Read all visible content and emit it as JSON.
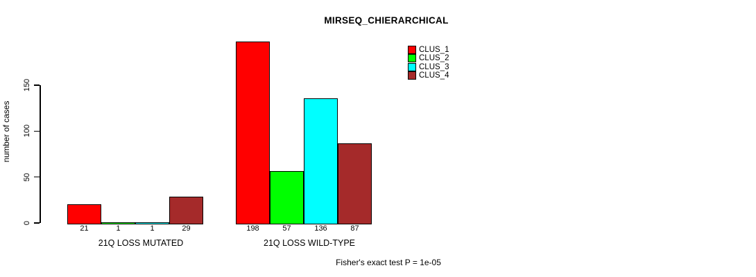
{
  "chart_data": {
    "type": "bar",
    "title": "MIRSEQ_CHIERARCHICAL",
    "ylabel": "number of cases",
    "xlabel": "",
    "ylim": [
      0,
      150
    ],
    "yticks": [
      0,
      50,
      100,
      150
    ],
    "grid": false,
    "legend_position": "top-right",
    "show_value_labels": true,
    "categories": [
      "21Q LOSS MUTATED",
      "21Q LOSS WILD-TYPE"
    ],
    "series": [
      {
        "name": "CLUS_1",
        "color": "#FF0000",
        "values": [
          21,
          198
        ]
      },
      {
        "name": "CLUS_2",
        "color": "#00FF00",
        "values": [
          1,
          57
        ]
      },
      {
        "name": "CLUS_3",
        "color": "#00FFFF",
        "values": [
          1,
          136
        ]
      },
      {
        "name": "CLUS_4",
        "color": "#A52A2A",
        "values": [
          29,
          87
        ]
      }
    ],
    "annotation": "Fisher's exact test P = 1e-05",
    "colors": {
      "background": "#FFFFFF",
      "axis": "#000000",
      "bar_border": "#000000",
      "text": "#000000"
    }
  }
}
